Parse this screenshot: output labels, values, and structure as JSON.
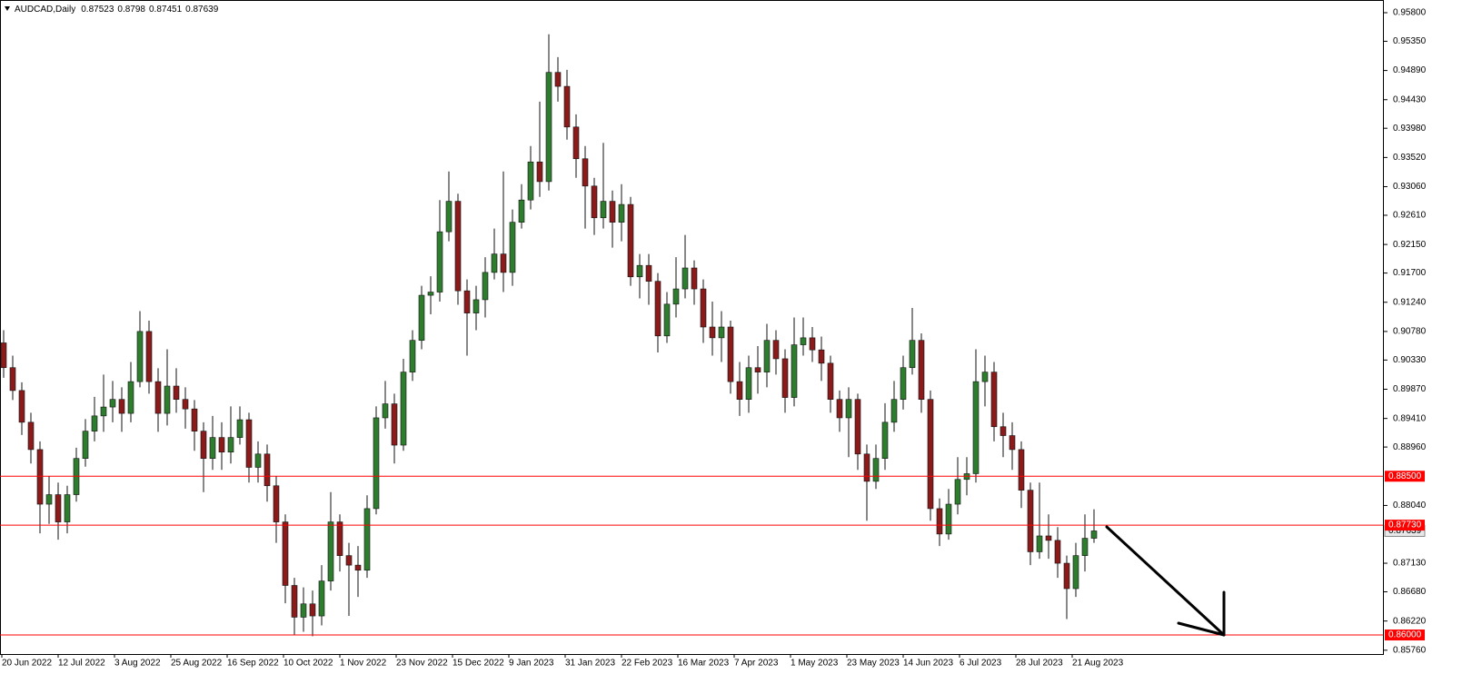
{
  "chart_data": {
    "type": "candlestick",
    "title": "AUDCAD,Daily",
    "up_color": "#2e7d2e",
    "down_color": "#8b1a1a",
    "level_color": "#ff0000",
    "xlim": [
      -0.4,
      151.8
    ],
    "ylim": [
      0.857,
      0.96
    ],
    "xticks": [
      {
        "value": -0.2,
        "label": "20 Jun 2022"
      },
      {
        "value": 6,
        "label": "12 Jul 2022"
      },
      {
        "value": 12.2,
        "label": "3 Aug 2022"
      },
      {
        "value": 18.4,
        "label": "25 Aug 2022"
      },
      {
        "value": 24.6,
        "label": "16 Sep 2022"
      },
      {
        "value": 30.8,
        "label": "10 Oct 2022"
      },
      {
        "value": 37,
        "label": "1 Nov 2022"
      },
      {
        "value": 43.2,
        "label": "23 Nov 2022"
      },
      {
        "value": 49.4,
        "label": "15 Dec 2022"
      },
      {
        "value": 55.6,
        "label": "9 Jan 2023"
      },
      {
        "value": 61.8,
        "label": "31 Jan 2023"
      },
      {
        "value": 68,
        "label": "22 Feb 2023"
      },
      {
        "value": 74.2,
        "label": "16 Mar 2023"
      },
      {
        "value": 80.4,
        "label": "7 Apr 2023"
      },
      {
        "value": 86.6,
        "label": "1 May 2023"
      },
      {
        "value": 92.8,
        "label": "23 May 2023"
      },
      {
        "value": 99,
        "label": "14 Jun 2023"
      },
      {
        "value": 105.2,
        "label": "6 Jul 2023"
      },
      {
        "value": 111.4,
        "label": "28 Jul 2023"
      },
      {
        "value": 117.6,
        "label": "21 Aug 2023"
      }
    ],
    "yticks": [
      {
        "value": 0.958,
        "label": "0.95800"
      },
      {
        "value": 0.9535,
        "label": "0.95350"
      },
      {
        "value": 0.9489,
        "label": "0.94890"
      },
      {
        "value": 0.9443,
        "label": "0.94430"
      },
      {
        "value": 0.9398,
        "label": "0.93980"
      },
      {
        "value": 0.9352,
        "label": "0.93520"
      },
      {
        "value": 0.9306,
        "label": "0.93060"
      },
      {
        "value": 0.9261,
        "label": "0.92610"
      },
      {
        "value": 0.9215,
        "label": "0.92150"
      },
      {
        "value": 0.917,
        "label": "0.91700"
      },
      {
        "value": 0.9124,
        "label": "0.91240"
      },
      {
        "value": 0.9078,
        "label": "0.90780"
      },
      {
        "value": 0.9033,
        "label": "0.90330"
      },
      {
        "value": 0.8987,
        "label": "0.89870"
      },
      {
        "value": 0.8941,
        "label": "0.89410"
      },
      {
        "value": 0.8896,
        "label": "0.88960"
      },
      {
        "value": 0.8804,
        "label": "0.88040"
      },
      {
        "value": 0.8713,
        "label": "0.87130"
      },
      {
        "value": 0.8668,
        "label": "0.86680"
      },
      {
        "value": 0.8622,
        "label": "0.86220"
      },
      {
        "value": 0.8576,
        "label": "0.85760"
      }
    ],
    "levels": [
      {
        "value": 0.885,
        "label": "0.88500"
      },
      {
        "value": 0.8773,
        "label": "0.87730"
      },
      {
        "value": 0.86,
        "label": "0.86000"
      }
    ],
    "open": [
      0.906,
      0.9021,
      0.8985,
      0.8935,
      0.8892,
      0.8806,
      0.8821,
      0.8778,
      0.8821,
      0.8878,
      0.8921,
      0.8945,
      0.8959,
      0.8971,
      0.8949,
      0.8999,
      0.9078,
      0.8999,
      0.8949,
      0.8992,
      0.8971,
      0.8956,
      0.8921,
      0.8878,
      0.8911,
      0.8888,
      0.8911,
      0.8939,
      0.8864,
      0.8885,
      0.8835,
      0.8778,
      0.8678,
      0.8628,
      0.8649,
      0.863,
      0.8685,
      0.8778,
      0.8725,
      0.871,
      0.8702,
      0.8799,
      0.8942,
      0.8964,
      0.8899,
      0.9014,
      0.9064,
      0.9135,
      0.914,
      0.9235,
      0.9283,
      0.9142,
      0.9107,
      0.9128,
      0.9171,
      0.92,
      0.9171,
      0.925,
      0.9285,
      0.9345,
      0.9314,
      0.9486,
      0.9464,
      0.94,
      0.935,
      0.9307,
      0.9257,
      0.9283,
      0.925,
      0.9278,
      0.9164,
      0.9182,
      0.9157,
      0.9071,
      0.9121,
      0.9145,
      0.9178,
      0.9145,
      0.9085,
      0.9068,
      0.9085,
      0.8999,
      0.8971,
      0.9021,
      0.9014,
      0.9064,
      0.9035,
      0.8974,
      0.9057,
      0.9068,
      0.9049,
      0.9028,
      0.8971,
      0.8942,
      0.8971,
      0.8885,
      0.8842,
      0.8878,
      0.8935,
      0.8971,
      0.9021,
      0.9064,
      0.8971,
      0.8799,
      0.8759,
      0.8806,
      0.8845,
      0.8854,
      0.8999,
      0.9014,
      0.8928,
      0.8914,
      0.8892,
      0.8828,
      0.8731,
      0.8756,
      0.8749,
      0.8713,
      0.8673,
      0.8725,
      0.87523
    ],
    "high": [
      0.908,
      0.904,
      0.8998,
      0.895,
      0.8905,
      0.885,
      0.884,
      0.8835,
      0.8895,
      0.894,
      0.8975,
      0.901,
      0.9,
      0.899,
      0.903,
      0.911,
      0.9095,
      0.902,
      0.905,
      0.902,
      0.899,
      0.897,
      0.8935,
      0.8945,
      0.8935,
      0.896,
      0.896,
      0.895,
      0.8905,
      0.89,
      0.885,
      0.879,
      0.869,
      0.8675,
      0.867,
      0.871,
      0.8825,
      0.879,
      0.8745,
      0.874,
      0.882,
      0.896,
      0.9,
      0.898,
      0.9035,
      0.908,
      0.915,
      0.9165,
      0.9285,
      0.933,
      0.9295,
      0.916,
      0.915,
      0.9195,
      0.924,
      0.933,
      0.927,
      0.931,
      0.937,
      0.944,
      0.9546,
      0.951,
      0.949,
      0.942,
      0.937,
      0.932,
      0.9375,
      0.93,
      0.931,
      0.929,
      0.92,
      0.92,
      0.917,
      0.914,
      0.9195,
      0.923,
      0.919,
      0.916,
      0.9125,
      0.911,
      0.9095,
      0.903,
      0.904,
      0.9055,
      0.909,
      0.908,
      0.905,
      0.91,
      0.91,
      0.9085,
      0.907,
      0.904,
      0.8985,
      0.899,
      0.898,
      0.89,
      0.89,
      0.8965,
      0.9,
      0.904,
      0.9115,
      0.9075,
      0.8985,
      0.8815,
      0.883,
      0.888,
      0.888,
      0.905,
      0.904,
      0.903,
      0.895,
      0.8935,
      0.8905,
      0.884,
      0.884,
      0.879,
      0.877,
      0.8725,
      0.8745,
      0.879,
      0.8798
    ],
    "low": [
      0.9005,
      0.897,
      0.8915,
      0.887,
      0.876,
      0.8775,
      0.875,
      0.876,
      0.881,
      0.8865,
      0.8905,
      0.892,
      0.8935,
      0.892,
      0.8935,
      0.899,
      0.898,
      0.892,
      0.893,
      0.895,
      0.8925,
      0.889,
      0.8825,
      0.886,
      0.886,
      0.887,
      0.89,
      0.884,
      0.884,
      0.881,
      0.8745,
      0.865,
      0.86,
      0.8605,
      0.8598,
      0.8615,
      0.867,
      0.87,
      0.863,
      0.866,
      0.869,
      0.879,
      0.8925,
      0.887,
      0.889,
      0.9,
      0.905,
      0.9105,
      0.9125,
      0.922,
      0.912,
      0.904,
      0.908,
      0.91,
      0.916,
      0.914,
      0.915,
      0.924,
      0.927,
      0.929,
      0.93,
      0.944,
      0.938,
      0.932,
      0.924,
      0.923,
      0.924,
      0.921,
      0.922,
      0.915,
      0.913,
      0.912,
      0.9045,
      0.906,
      0.91,
      0.913,
      0.912,
      0.906,
      0.904,
      0.903,
      0.898,
      0.8945,
      0.895,
      0.898,
      0.899,
      0.901,
      0.895,
      0.896,
      0.904,
      0.903,
      0.9,
      0.895,
      0.892,
      0.888,
      0.886,
      0.878,
      0.883,
      0.886,
      0.892,
      0.8955,
      0.901,
      0.895,
      0.878,
      0.874,
      0.875,
      0.879,
      0.882,
      0.884,
      0.896,
      0.8905,
      0.888,
      0.886,
      0.88,
      0.871,
      0.872,
      0.872,
      0.869,
      0.8625,
      0.866,
      0.87,
      0.87451
    ],
    "close": [
      0.9021,
      0.8985,
      0.8935,
      0.8892,
      0.8806,
      0.8821,
      0.8778,
      0.8821,
      0.8878,
      0.8921,
      0.8945,
      0.8959,
      0.8971,
      0.8949,
      0.8999,
      0.9078,
      0.8999,
      0.8949,
      0.8992,
      0.8971,
      0.8956,
      0.8921,
      0.8878,
      0.8911,
      0.8888,
      0.8911,
      0.8939,
      0.8864,
      0.8885,
      0.8835,
      0.8778,
      0.8678,
      0.8628,
      0.8649,
      0.863,
      0.8685,
      0.8778,
      0.8725,
      0.871,
      0.8702,
      0.8799,
      0.8942,
      0.8964,
      0.8899,
      0.9014,
      0.9064,
      0.9135,
      0.914,
      0.9235,
      0.9283,
      0.9142,
      0.9107,
      0.9128,
      0.9171,
      0.92,
      0.9171,
      0.925,
      0.9285,
      0.9345,
      0.9314,
      0.9486,
      0.9464,
      0.94,
      0.935,
      0.9307,
      0.9257,
      0.9283,
      0.925,
      0.9278,
      0.9164,
      0.9182,
      0.9157,
      0.9071,
      0.9121,
      0.9145,
      0.9178,
      0.9145,
      0.9085,
      0.9068,
      0.9085,
      0.8999,
      0.8971,
      0.9021,
      0.9014,
      0.9064,
      0.9035,
      0.8974,
      0.9057,
      0.9068,
      0.9049,
      0.9028,
      0.8971,
      0.8942,
      0.8971,
      0.8885,
      0.8842,
      0.8878,
      0.8935,
      0.8971,
      0.9021,
      0.9064,
      0.8971,
      0.8799,
      0.8759,
      0.8806,
      0.8845,
      0.8854,
      0.8999,
      0.9014,
      0.8928,
      0.8914,
      0.8892,
      0.8828,
      0.8731,
      0.8756,
      0.8749,
      0.8713,
      0.8673,
      0.8725,
      0.87523,
      0.87639
    ]
  }
}
